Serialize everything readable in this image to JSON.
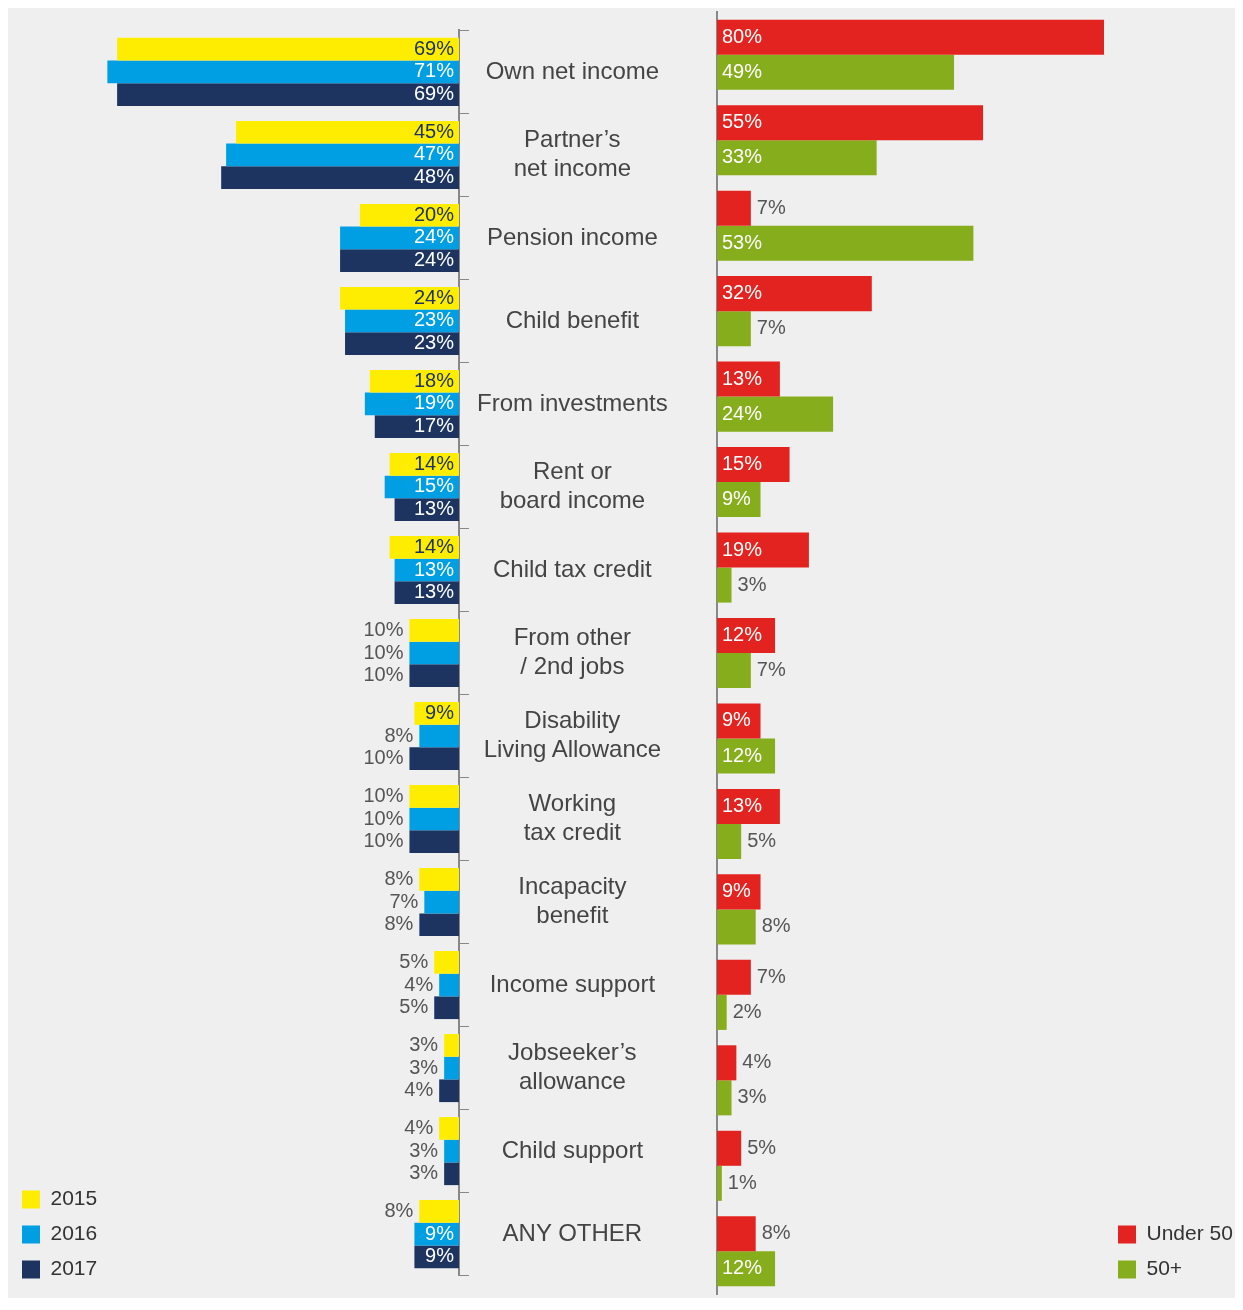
{
  "chart_data": [
    {
      "type": "bar",
      "orientation": "horizontal",
      "categories": [
        "Own net income",
        "Partner’s net income",
        "Pension income",
        "Child benefit",
        "From investments",
        "Rent or board income",
        "Child tax credit",
        "From other / 2nd jobs",
        "Disability Living Allowance",
        "Working tax credit",
        "Incapacity benefit",
        "Income support",
        "Jobseeker’s allowance",
        "Child support",
        "ANY OTHER"
      ],
      "series": [
        {
          "name": "2015",
          "color": "#ffed00",
          "values": [
            69,
            45,
            20,
            24,
            18,
            14,
            14,
            10,
            9,
            10,
            8,
            5,
            3,
            4,
            8
          ],
          "value_labels": [
            "69%",
            "45%",
            "20%",
            "24%",
            "18%",
            "14%",
            "14%",
            "10%",
            "9%",
            "10%",
            "8%",
            "5%",
            "3%",
            "4%",
            "8%"
          ]
        },
        {
          "name": "2016",
          "color": "#009fe3",
          "values": [
            71,
            47,
            24,
            23,
            19,
            15,
            13,
            10,
            8,
            10,
            7,
            4,
            3,
            3,
            9
          ],
          "value_labels": [
            "71%",
            "47%",
            "24%",
            "23%",
            "19%",
            "15%",
            "13%",
            "10%",
            "8%",
            "10%",
            "7%",
            "4%",
            "3%",
            "3%",
            "9%"
          ]
        },
        {
          "name": "2017",
          "color": "#1d3461",
          "values": [
            69,
            48,
            24,
            23,
            17,
            13,
            13,
            10,
            10,
            10,
            8,
            5,
            4,
            3,
            9
          ],
          "value_labels": [
            "69%",
            "48%",
            "24%",
            "23%",
            "17%",
            "13%",
            "13%",
            "10%",
            "10%",
            "10%",
            "8%",
            "5%",
            "4%",
            "3%",
            "9%"
          ]
        }
      ],
      "legend": "bottom left",
      "tick_labels": "y",
      "grid": false
    },
    {
      "type": "bar",
      "orientation": "horizontal",
      "categories": [
        null,
        null,
        null,
        null,
        null,
        null,
        null,
        null,
        null,
        null,
        null,
        null,
        null,
        null,
        null
      ],
      "series": [
        {
          "name": "Under 50",
          "color": "#e3231f",
          "values": [
            80,
            55,
            7,
            32,
            13,
            15,
            19,
            12,
            9,
            13,
            9,
            7,
            4,
            5,
            8
          ],
          "value_labels": [
            "80%",
            "55%",
            "7%",
            "32%",
            "13%",
            "15%",
            "19%",
            "12%",
            "9%",
            "13%",
            "9%",
            "7%",
            "4%",
            "5%",
            "8%"
          ]
        },
        {
          "name": "50+",
          "color": "#86ad1b",
          "values": [
            49,
            33,
            53,
            7,
            24,
            9,
            3,
            7,
            12,
            5,
            8,
            2,
            3,
            1,
            12
          ],
          "value_labels": [
            "49%",
            "33%",
            "53%",
            "7%",
            "24%",
            "9%",
            "3%",
            "7%",
            "12%",
            "5%",
            "8%",
            "2%",
            "3%",
            "1%",
            "12%"
          ]
        }
      ],
      "legend": "bottom right",
      "tick_labels": false,
      "grid": false
    }
  ]
}
